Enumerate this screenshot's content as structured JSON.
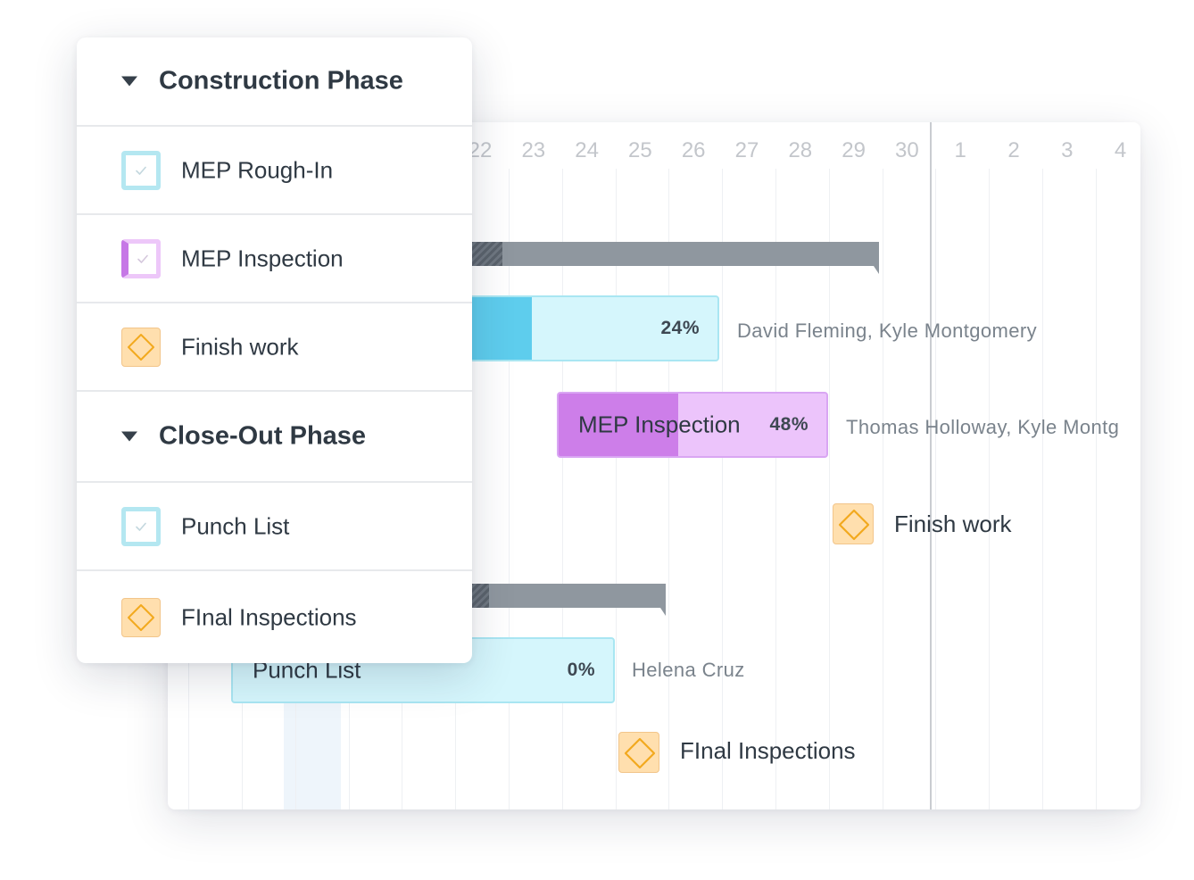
{
  "timeline": {
    "days": [
      "22",
      "23",
      "24",
      "25",
      "26",
      "27",
      "28",
      "29",
      "30",
      "1",
      "2",
      "3",
      "4"
    ]
  },
  "task_list": {
    "groups": [
      {
        "title": "Construction Phase",
        "tasks": [
          {
            "title": "MEP Rough-In",
            "icon": "checkbox-icon"
          },
          {
            "title": "MEP Inspection",
            "icon": "checkbox-icon"
          },
          {
            "title": "Finish work",
            "icon": "milestone-diamond-icon"
          }
        ]
      },
      {
        "title": "Close-Out Phase",
        "tasks": [
          {
            "title": "Punch List",
            "icon": "checkbox-icon"
          },
          {
            "title": "FInal Inspections",
            "icon": "milestone-diamond-icon"
          }
        ]
      }
    ]
  },
  "gantt": {
    "rough_in": {
      "percent": "24%",
      "progress": 0.24,
      "assignees": "David Fleming, Kyle Montgomery"
    },
    "inspection": {
      "name": "MEP Inspection",
      "percent": "48%",
      "progress": 0.48,
      "assignees": "Thomas Holloway, Kyle Montg"
    },
    "finish_work": {
      "label": "Finish work"
    },
    "punch_list": {
      "name": "Punch List",
      "percent": "0%",
      "progress": 0,
      "assignees": "Helena Cruz"
    },
    "final_inspections": {
      "label": "FInal Inspections"
    }
  },
  "colors": {
    "task_cyan": "#5ecded",
    "task_cyan_light": "#d5f6fc",
    "task_purple": "#cd7ee9",
    "task_purple_light": "#ecc4fb",
    "summary_gray": "#8f979f",
    "milestone_orange": "#ffdfae",
    "milestone_stroke": "#f2a91e"
  }
}
